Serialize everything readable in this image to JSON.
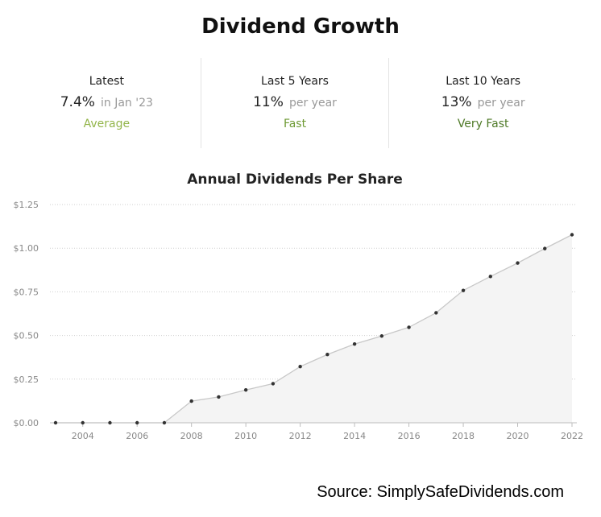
{
  "page_title": "Dividend Growth",
  "stats": [
    {
      "label": "Latest",
      "value": "7.4%",
      "unit": "in Jan '23",
      "rating": "Average",
      "rating_color": "#93b54a"
    },
    {
      "label": "Last 5 Years",
      "value": "11%",
      "unit": "per year",
      "rating": "Fast",
      "rating_color": "#6e9a34"
    },
    {
      "label": "Last 10 Years",
      "value": "13%",
      "unit": "per year",
      "rating": "Very Fast",
      "rating_color": "#4f7a28"
    }
  ],
  "source": "Source: SimplySafeDividends.com",
  "chart_data": {
    "type": "area",
    "title": "Annual Dividends Per Share",
    "xlabel": "",
    "ylabel": "",
    "x": [
      2003,
      2004,
      2005,
      2006,
      2007,
      2008,
      2009,
      2010,
      2011,
      2012,
      2013,
      2014,
      2015,
      2016,
      2017,
      2018,
      2019,
      2020,
      2021,
      2022
    ],
    "values": [
      0.0,
      0.0,
      0.0,
      0.0,
      0.0,
      0.124,
      0.148,
      0.188,
      0.224,
      0.322,
      0.391,
      0.451,
      0.497,
      0.547,
      0.63,
      0.758,
      0.838,
      0.915,
      0.998,
      1.077
    ],
    "ylim": [
      0,
      1.25
    ],
    "yticks": [
      0,
      0.25,
      0.5,
      0.75,
      1.0,
      1.25
    ],
    "ytick_labels": [
      "$0.00",
      "$0.25",
      "$0.50",
      "$0.75",
      "$1.00",
      "$1.25"
    ],
    "xticks": [
      2004,
      2006,
      2008,
      2010,
      2012,
      2014,
      2016,
      2018,
      2020,
      2022
    ],
    "grid": "horizontal-dotted",
    "line_color": "#c8c8c8",
    "fill_color": "#f4f4f4",
    "point_color": "#333333"
  }
}
